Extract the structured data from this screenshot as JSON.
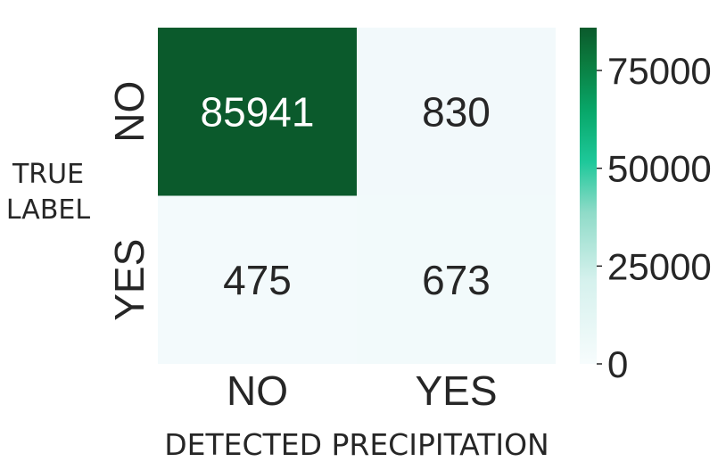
{
  "chart_data": {
    "type": "heatmap",
    "ylabel": [
      "TRUE",
      "LABEL"
    ],
    "xlabel": "DETECTED PRECIPITATION",
    "x_categories": [
      "NO",
      "YES"
    ],
    "y_categories": [
      "NO",
      "YES"
    ],
    "values": [
      [
        85941,
        830
      ],
      [
        475,
        673
      ]
    ],
    "value_labels": [
      "85941",
      "830",
      "475",
      "673"
    ],
    "colorbar": {
      "range": [
        0,
        85941
      ],
      "ticks": [
        0,
        25000,
        50000,
        75000
      ],
      "tick_labels": [
        "0",
        "25000",
        "50000",
        "75000"
      ],
      "colormap": "BuGn"
    },
    "colors": {
      "high": "#0b5a2c",
      "low": "#f4fbfd",
      "text_dark_cell": "#ffffff",
      "text_light_cell": "#262626",
      "label": "#262626"
    }
  }
}
